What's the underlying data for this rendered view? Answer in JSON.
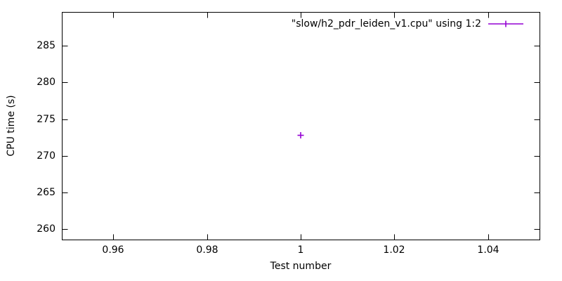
{
  "chart_data": {
    "type": "scatter",
    "title": "",
    "xlabel": "Test number",
    "ylabel": "CPU time (s)",
    "xlim": [
      0.949,
      1.051
    ],
    "ylim": [
      258.6,
      289.6
    ],
    "xtick_values": [
      0.96,
      0.98,
      1,
      1.02,
      1.04
    ],
    "xtick_labels": [
      "0.96",
      "0.98",
      "1",
      "1.02",
      "1.04"
    ],
    "ytick_values": [
      260,
      265,
      270,
      275,
      280,
      285
    ],
    "ytick_labels": [
      "260",
      "265",
      "270",
      "275",
      "280",
      "285"
    ],
    "grid": false,
    "legend_position": "inside top-right",
    "axis_color": "#000000",
    "background_color": "#ffffff",
    "series": [
      {
        "name": "\"slow/h2_pdr_leiden_v1.cpu\" using 1:2",
        "color": "#9400d3",
        "marker": "plus",
        "style": "linespoints",
        "points": [
          [
            1,
            272.8
          ]
        ]
      }
    ]
  }
}
